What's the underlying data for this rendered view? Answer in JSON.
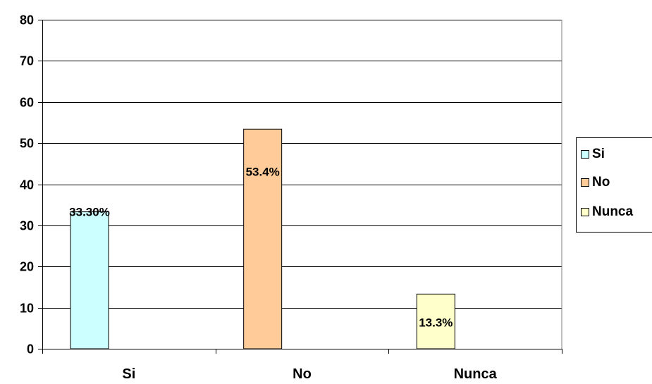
{
  "chart_data": {
    "type": "bar",
    "categories": [
      "Si",
      "No",
      "Nunca"
    ],
    "series": [
      {
        "name": "Si",
        "color": "#ccffff",
        "values": [
          33.3,
          null,
          null
        ],
        "label": "33.30%"
      },
      {
        "name": "No",
        "color": "#ffcc99",
        "values": [
          null,
          53.4,
          null
        ],
        "label": "53.4%"
      },
      {
        "name": "Nunca",
        "color": "#ffffcc",
        "values": [
          null,
          null,
          13.3
        ],
        "label": "13.3%"
      }
    ],
    "ylim": [
      0,
      80
    ],
    "yticks": [
      "0",
      "10",
      "20",
      "30",
      "40",
      "50",
      "60",
      "70",
      "80"
    ],
    "grid": true,
    "legend_position": "right",
    "title": "",
    "xlabel": "",
    "ylabel": ""
  }
}
